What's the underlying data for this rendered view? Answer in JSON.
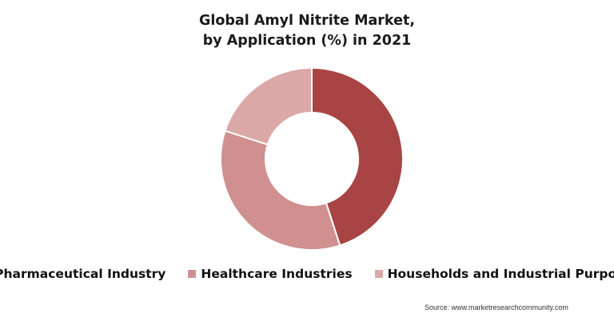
{
  "title_line1": "Global Amyl Nitrite Market,",
  "title_line2": "by Application (%) in 2021",
  "source": "Source: www.marketresearchcommunity.com",
  "chart_data": {
    "type": "pie",
    "variant": "donut",
    "title": "Global Amyl Nitrite Market, by Application (%) in 2021",
    "categories": [
      "Pharmaceutical Industry",
      "Healthcare Industries",
      "Households and Industrial Purpose"
    ],
    "values": [
      45,
      35,
      20
    ],
    "colors": [
      "#a84444",
      "#d09090",
      "#dba8a8"
    ],
    "legend_position": "bottom",
    "start_angle": 0,
    "direction": "clockwise"
  },
  "legend": [
    {
      "label": "Pharmaceutical Industry",
      "color": "#a84444"
    },
    {
      "label": "Healthcare Industries",
      "color": "#d09090"
    },
    {
      "label": "Households and Industrial Purpose",
      "color": "#dba8a8"
    }
  ]
}
